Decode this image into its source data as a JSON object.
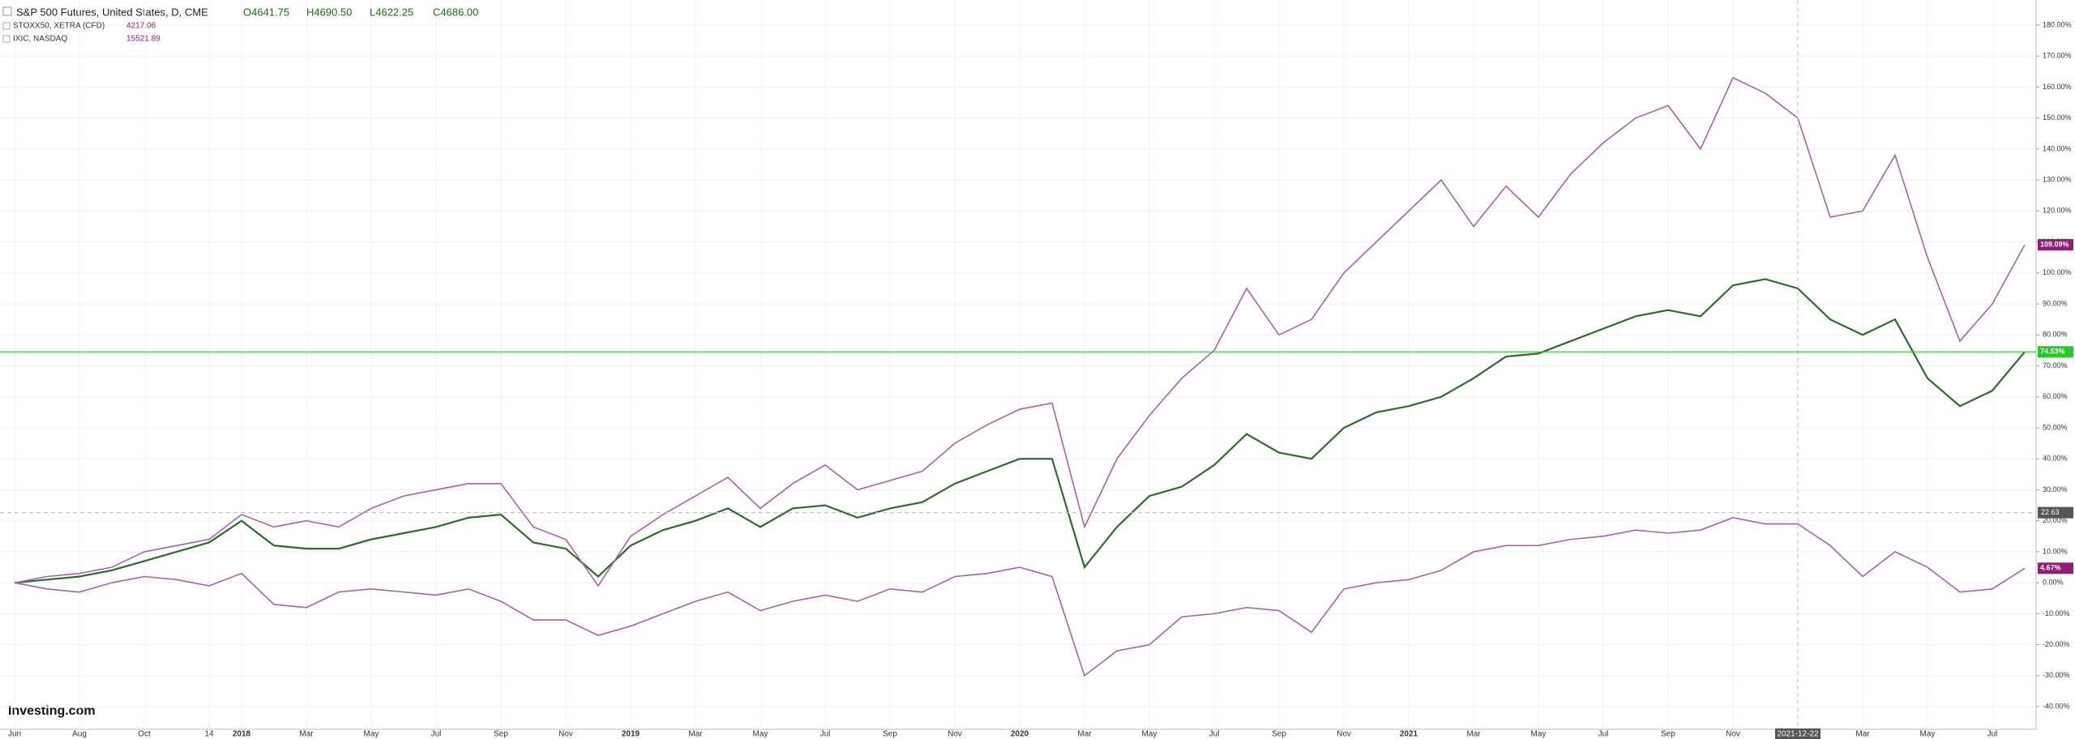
{
  "chart_data": {
    "type": "line",
    "header": {
      "title": "S&P 500 Futures, United States, D, CME",
      "ohlc": [
        "O4641.75",
        "H4690.50",
        "L4622.25",
        "C4686.00"
      ]
    },
    "logo": "Investing.com",
    "categories": [
      "Jun",
      null,
      "Aug",
      null,
      "Oct",
      null,
      "14",
      "2018",
      null,
      "Mar",
      null,
      "May",
      null,
      "Jul",
      null,
      "Sep",
      null,
      "Nov",
      null,
      "2019",
      null,
      "Mar",
      null,
      "May",
      null,
      "Jul",
      null,
      "Sep",
      null,
      "Nov",
      null,
      "2020",
      null,
      "Mar",
      null,
      "May",
      null,
      "Jul",
      null,
      "Sep",
      null,
      "Nov",
      null,
      "2021",
      null,
      "Mar",
      null,
      "May",
      null,
      "Jul",
      null,
      "Sep",
      null,
      "Nov",
      null,
      "2021-12-22",
      null,
      "Mar",
      null,
      "May",
      null,
      "Jul",
      null
    ],
    "series": [
      {
        "name": "S&P 500 Futures",
        "color": "#2d6a2d",
        "badge_color": "#22cc22",
        "last_label": "74.53%",
        "price_line": true,
        "values": [
          0,
          1,
          2,
          4,
          7,
          10,
          13,
          20,
          12,
          11,
          11,
          14,
          16,
          18,
          21,
          22,
          13,
          11,
          2,
          12,
          17,
          20,
          24,
          18,
          24,
          25,
          21,
          24,
          26,
          32,
          36,
          40,
          40,
          5,
          18,
          28,
          31,
          38,
          48,
          42,
          40,
          50,
          55,
          57,
          60,
          66,
          73,
          74,
          78,
          82,
          86,
          88,
          86,
          96,
          98,
          95,
          85,
          80,
          85,
          66,
          57,
          62,
          74.53
        ]
      },
      {
        "name": "STOXX50, XETRA (CFD)",
        "price": 4217.06,
        "color": "#a462aa",
        "badge_color": "#8e1f72",
        "last_label": "4.67%",
        "values": [
          0,
          -2,
          -3,
          0,
          2,
          1,
          -1,
          3,
          -7,
          -8,
          -3,
          -2,
          -3,
          -4,
          -2,
          -6,
          -12,
          -12,
          -17,
          -14,
          -10,
          -6,
          -3,
          -9,
          -6,
          -4,
          -6,
          -2,
          -3,
          2,
          3,
          5,
          2,
          -30,
          -22,
          -20,
          -11,
          -10,
          -8,
          -9,
          -16,
          -2,
          0,
          1,
          4,
          10,
          12,
          12,
          14,
          15,
          17,
          16,
          17,
          21,
          19,
          19,
          12,
          2,
          10,
          5,
          -3,
          -2,
          4.67
        ]
      },
      {
        "name": "IXIC, NASDAQ",
        "price": 15521.89,
        "color": "#a462aa",
        "badge_color": "#8e1f72",
        "last_label": "109.09%",
        "values": [
          0,
          2,
          3,
          5,
          10,
          12,
          14,
          22,
          18,
          20,
          18,
          24,
          28,
          30,
          32,
          32,
          18,
          14,
          -1,
          15,
          22,
          28,
          34,
          24,
          32,
          38,
          30,
          33,
          36,
          45,
          51,
          56,
          58,
          18,
          40,
          54,
          66,
          75,
          95,
          80,
          85,
          100,
          110,
          120,
          130,
          115,
          128,
          118,
          132,
          142,
          150,
          154,
          140,
          163,
          158,
          150,
          118,
          120,
          138,
          105,
          78,
          90,
          109.09
        ]
      }
    ],
    "crosshair": {
      "y": 22.63
    },
    "ylim": [
      -47.3,
      188.1
    ],
    "yticks": [
      {
        "value": -40,
        "label": "-40.00%"
      },
      {
        "value": -30,
        "label": "-30.00%"
      },
      {
        "value": -20,
        "label": "-20.00%"
      },
      {
        "value": -10,
        "label": "-10.00%"
      },
      {
        "value": 0,
        "label": "0.00%"
      },
      {
        "value": 10,
        "label": "10.00%"
      },
      {
        "value": 20,
        "label": "20.00%"
      },
      {
        "value": 30,
        "label": "30.00%"
      },
      {
        "value": 40,
        "label": "40.00%"
      },
      {
        "value": 50,
        "label": "50.00%"
      },
      {
        "value": 60,
        "label": "60.00%"
      },
      {
        "value": 70,
        "label": "70.00%"
      },
      {
        "value": 80,
        "label": "80.00%"
      },
      {
        "value": 90,
        "label": "90.00%"
      },
      {
        "value": 100,
        "label": "100.00%"
      },
      {
        "value": 110,
        "label": "110.00%"
      },
      {
        "value": 120,
        "label": "120.00%"
      },
      {
        "value": 130,
        "label": "130.00%"
      },
      {
        "value": 140,
        "label": "140.00%"
      },
      {
        "value": 150,
        "label": "150.00%"
      },
      {
        "value": 160,
        "label": "160.00%"
      },
      {
        "value": 170,
        "label": "170.00%"
      },
      {
        "value": 180,
        "label": "180.00%"
      }
    ],
    "grid": true
  }
}
